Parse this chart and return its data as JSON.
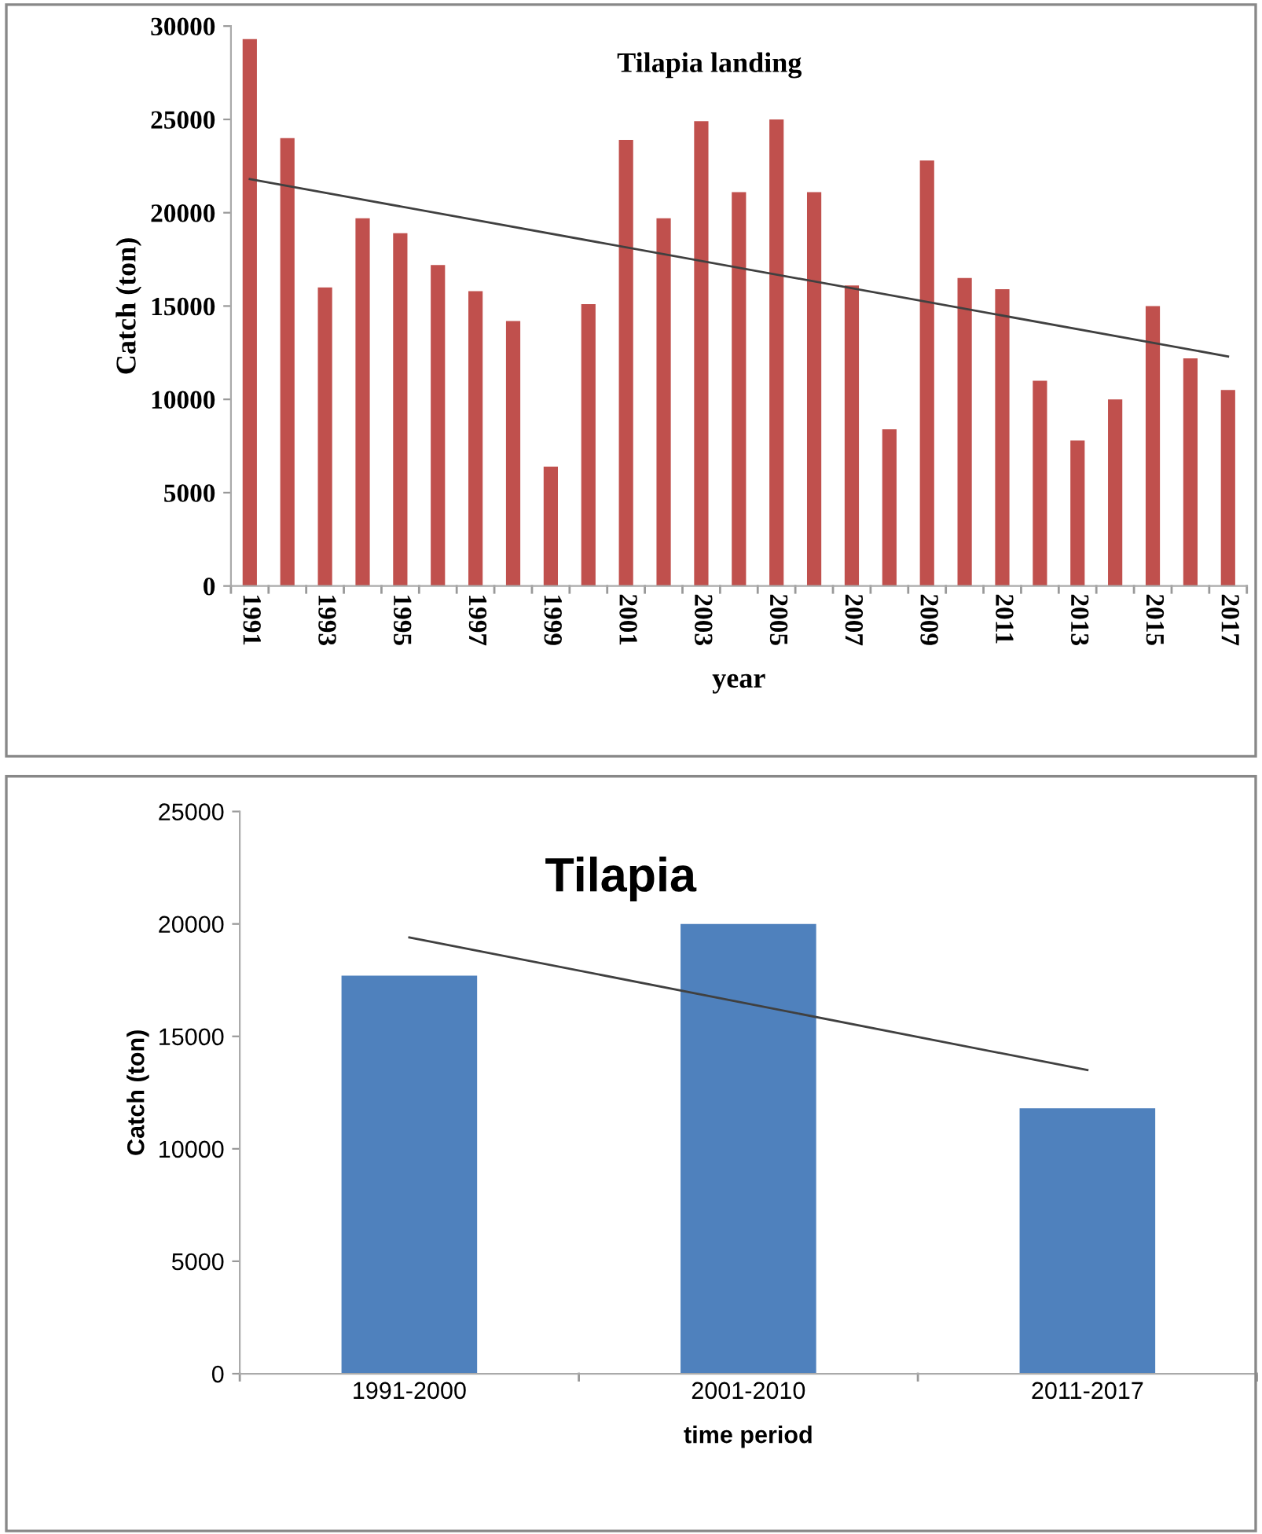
{
  "chart_data": [
    {
      "type": "bar",
      "title": "Tilapia landing",
      "xlabel": "year",
      "ylabel": "Catch (ton)",
      "categories": [
        "1991",
        null,
        "1993",
        null,
        "1995",
        null,
        "1997",
        null,
        "1999",
        null,
        "2001",
        null,
        "2003",
        null,
        "2005",
        null,
        "2007",
        null,
        "2009",
        null,
        "2011",
        null,
        "2013",
        null,
        "2015",
        null,
        "2017"
      ],
      "series": [
        {
          "color": "#c0504d",
          "values": [
            29300,
            24000,
            16000,
            19700,
            18900,
            17200,
            15800,
            14200,
            6400,
            15100,
            23900,
            19700,
            24900,
            21100,
            25000,
            21100,
            16100,
            8400,
            22800,
            16500,
            15900,
            11000,
            7800,
            10000,
            15000,
            12200,
            10500
          ]
        },
        {
          "type": "line",
          "color": "#404040",
          "values": [
            21800,
            null,
            null,
            null,
            null,
            null,
            null,
            null,
            null,
            null,
            null,
            null,
            null,
            null,
            null,
            null,
            null,
            null,
            null,
            null,
            null,
            null,
            null,
            null,
            null,
            null,
            12300
          ]
        }
      ],
      "ylim": [
        0,
        30000
      ],
      "yticks": [
        0,
        5000,
        10000,
        15000,
        20000,
        25000,
        30000
      ]
    },
    {
      "type": "bar",
      "title": "Tilapia",
      "xlabel": "time period",
      "ylabel": "Catch (ton)",
      "categories": [
        "1991-2000",
        "2001-2010",
        "2011-2017"
      ],
      "series": [
        {
          "color": "#4f81bd",
          "values": [
            17700,
            20000,
            11800
          ]
        },
        {
          "type": "line",
          "color": "#404040",
          "values": [
            19400,
            null,
            13500
          ]
        }
      ],
      "ylim": [
        0,
        25000
      ],
      "yticks": [
        0,
        5000,
        10000,
        15000,
        20000,
        25000
      ]
    }
  ]
}
